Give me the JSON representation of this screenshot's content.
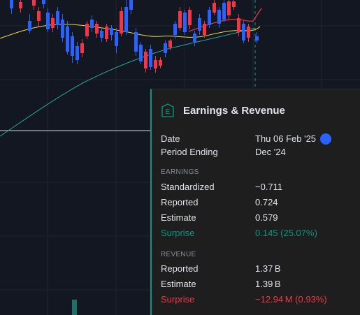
{
  "popup": {
    "badge_letter": "E",
    "title": "Earnings & Revenue",
    "date_label": "Date",
    "date_value": "Thu 06 Feb '25",
    "period_label": "Period Ending",
    "period_value": "Dec '24",
    "earnings_header": "EARNINGS",
    "standardized_label": "Standardized",
    "standardized_value": "−0.711",
    "reported_label": "Reported",
    "reported_value": "0.724",
    "estimate_label": "Estimate",
    "estimate_value": "0.579",
    "surprise_label": "Surprise",
    "surprise_value": "0.145 (25.07%)",
    "revenue_header": "REVENUE",
    "rev_reported_label": "Reported",
    "rev_reported_value": "1.37 B",
    "rev_estimate_label": "Estimate",
    "rev_estimate_value": "1.39 B",
    "rev_surprise_label": "Surprise",
    "rev_surprise_value": "−12.94 M (0.93%)"
  },
  "colors": {
    "up": "#089981",
    "down": "#f23645",
    "up_candle": "#2962ff",
    "background": "#131722"
  }
}
